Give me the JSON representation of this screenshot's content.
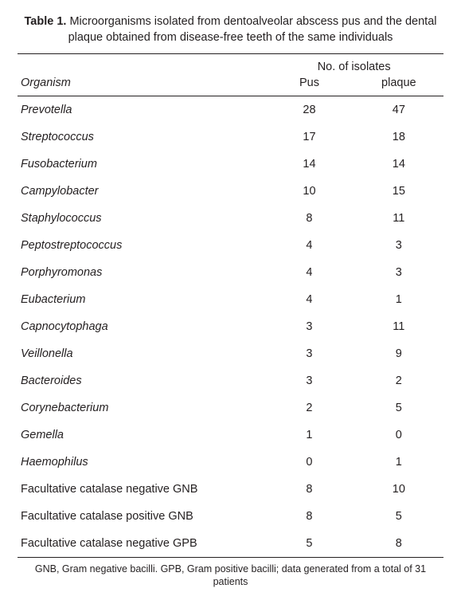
{
  "table": {
    "type": "table",
    "background_color": "#ffffff",
    "text_color": "#231f20",
    "rule_color": "#231f20",
    "body_fontsize_pt": 11,
    "caption_fontsize_pt": 11,
    "footnote_fontsize_pt": 9.5,
    "column_widths_pct": [
      58,
      21,
      21
    ],
    "table_label": "Table 1.",
    "caption": "Microorganisms isolated from dentoalveolar abscess pus and the dental plaque obtained from disease-free teeth of the same individuals",
    "header": {
      "group_label": "No. of isolates",
      "col0": "Organism",
      "col1": "Pus",
      "col2": "plaque"
    },
    "rows": [
      {
        "name": "Prevotella",
        "italic": true,
        "pus": "28",
        "plaque": "47"
      },
      {
        "name": "Streptococcus",
        "italic": true,
        "pus": "17",
        "plaque": "18"
      },
      {
        "name": "Fusobacterium",
        "italic": true,
        "pus": "14",
        "plaque": "14"
      },
      {
        "name": "Campylobacter",
        "italic": true,
        "pus": "10",
        "plaque": "15"
      },
      {
        "name": "Staphylococcus",
        "italic": true,
        "pus": "8",
        "plaque": "11"
      },
      {
        "name": "Peptostreptococcus",
        "italic": true,
        "pus": "4",
        "plaque": "3"
      },
      {
        "name": "Porphyromonas",
        "italic": true,
        "pus": "4",
        "plaque": "3"
      },
      {
        "name": "Eubacterium",
        "italic": true,
        "pus": "4",
        "plaque": "1"
      },
      {
        "name": "Capnocytophaga",
        "italic": true,
        "pus": "3",
        "plaque": "11"
      },
      {
        "name": "Veillonella",
        "italic": true,
        "pus": "3",
        "plaque": "9"
      },
      {
        "name": "Bacteroides",
        "italic": true,
        "pus": "3",
        "plaque": "2"
      },
      {
        "name": "Corynebacterium",
        "italic": true,
        "pus": "2",
        "plaque": "5"
      },
      {
        "name": "Gemella",
        "italic": true,
        "pus": "1",
        "plaque": "0"
      },
      {
        "name": "Haemophilus",
        "italic": true,
        "pus": "0",
        "plaque": "1"
      },
      {
        "name": "Facultative catalase negative GNB",
        "italic": false,
        "pus": "8",
        "plaque": "10"
      },
      {
        "name": "Facultative catalase positive GNB",
        "italic": false,
        "pus": "8",
        "plaque": "5"
      },
      {
        "name": "Facultative catalase negative GPB",
        "italic": false,
        "pus": "5",
        "plaque": "8"
      }
    ],
    "footnote": "GNB, Gram negative bacilli. GPB, Gram positive bacilli; data generated from a total of 31 patients"
  }
}
